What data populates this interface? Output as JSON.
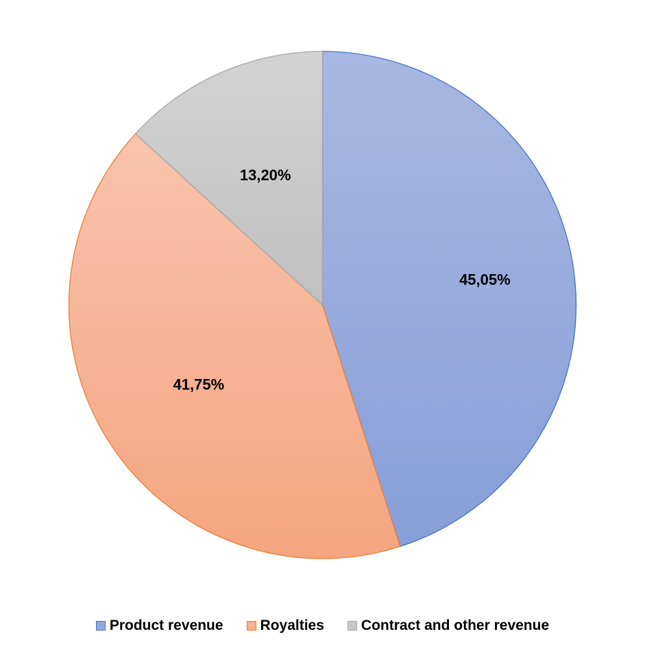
{
  "chart_data": {
    "type": "pie",
    "title": "",
    "categories": [
      "Product revenue",
      "Royalties",
      "Contract and other revenue"
    ],
    "values": [
      45.05,
      41.75,
      13.2
    ],
    "data_labels": [
      "45,05%",
      "41,75%",
      "13,20%"
    ],
    "colors_top": [
      "#a8b8e2",
      "#f8c3ad",
      "#d3d3d3"
    ],
    "colors_bottom": [
      "#879ed8",
      "#f5a57f",
      "#c0c0c0"
    ],
    "stroke_colors": [
      "#4472c4",
      "#ed7d31",
      "#a5a5a5"
    ],
    "swatch_colors": [
      "#94a8dc",
      "#f6b08f",
      "#c8c8c8"
    ],
    "legend_position": "bottom",
    "start_angle": "12 o'clock",
    "direction": "clockwise"
  }
}
